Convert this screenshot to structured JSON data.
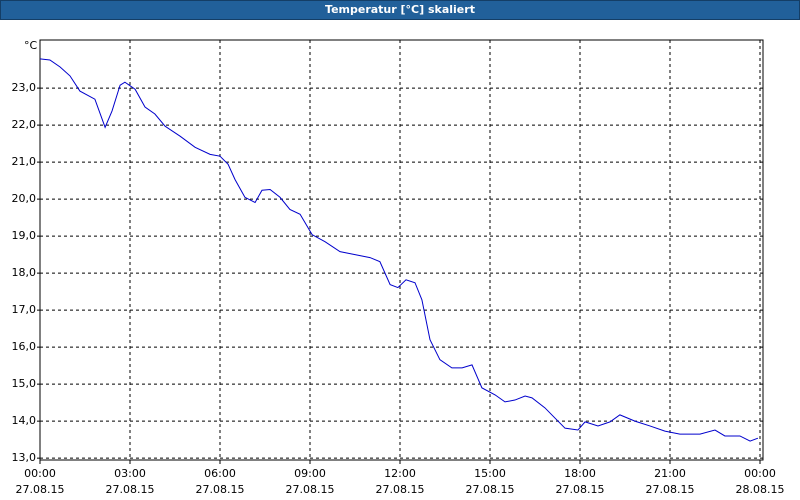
{
  "chart_data": {
    "type": "line",
    "title": "Temperatur [°C] skaliert",
    "y_label": "°C",
    "xlim": [
      0,
      24.1
    ],
    "ylim": [
      12.95,
      24.3
    ],
    "grid": true,
    "xticks": [
      {
        "value": 0,
        "label": "00:00"
      },
      {
        "value": 3,
        "label": "03:00"
      },
      {
        "value": 6,
        "label": "06:00"
      },
      {
        "value": 9,
        "label": "09:00"
      },
      {
        "value": 12,
        "label": "12:00"
      },
      {
        "value": 15,
        "label": "15:00"
      },
      {
        "value": 18,
        "label": "18:00"
      },
      {
        "value": 21,
        "label": "21:00"
      },
      {
        "value": 24,
        "label": "00:00"
      }
    ],
    "xtick_dates": [
      "27.08.15",
      "27.08.15",
      "27.08.15",
      "27.08.15",
      "27.08.15",
      "27.08.15",
      "27.08.15",
      "27.08.15",
      "28.08.15"
    ],
    "yticks": [
      {
        "value": 13,
        "label": "13,0"
      },
      {
        "value": 14,
        "label": "14,0"
      },
      {
        "value": 15,
        "label": "15,0"
      },
      {
        "value": 16,
        "label": "16,0"
      },
      {
        "value": 17,
        "label": "17,0"
      },
      {
        "value": 18,
        "label": "18,0"
      },
      {
        "value": 19,
        "label": "19,0"
      },
      {
        "value": 20,
        "label": "20,0"
      },
      {
        "value": 21,
        "label": "21,0"
      },
      {
        "value": 22,
        "label": "22,0"
      },
      {
        "value": 23,
        "label": "23,0"
      }
    ],
    "x": [
      0,
      0.33,
      0.67,
      1,
      1.33,
      1.83,
      2.17,
      2.4,
      2.67,
      2.83,
      3.17,
      3.5,
      3.83,
      4.17,
      4.67,
      5.17,
      5.67,
      6,
      6.27,
      6.5,
      6.83,
      7.17,
      7.4,
      7.67,
      8,
      8.33,
      8.67,
      9.07,
      9.5,
      10,
      10.5,
      11,
      11.33,
      11.67,
      11.93,
      12.2,
      12.5,
      12.73,
      13,
      13.33,
      13.73,
      14.07,
      14.4,
      14.73,
      15.17,
      15.5,
      15.83,
      16.17,
      16.4,
      16.83,
      17.17,
      17.5,
      17.93,
      18.17,
      18.6,
      19,
      19.33,
      19.83,
      20.33,
      20.83,
      21.33,
      22,
      22.5,
      22.83,
      23.33,
      23.67,
      23.93
    ],
    "series": [
      {
        "color": "#0000cc",
        "values": [
          23.79,
          23.76,
          23.57,
          23.33,
          22.92,
          22.7,
          21.94,
          22.38,
          23.08,
          23.16,
          22.97,
          22.49,
          22.3,
          21.97,
          21.7,
          21.4,
          21.21,
          21.16,
          20.94,
          20.53,
          20.05,
          19.91,
          20.24,
          20.26,
          20.05,
          19.72,
          19.59,
          19.04,
          18.85,
          18.58,
          18.5,
          18.42,
          18.31,
          17.69,
          17.61,
          17.82,
          17.74,
          17.28,
          16.2,
          15.66,
          15.44,
          15.44,
          15.52,
          14.9,
          14.71,
          14.52,
          14.57,
          14.68,
          14.63,
          14.36,
          14.08,
          13.81,
          13.76,
          13.98,
          13.87,
          13.98,
          14.17,
          14.0,
          13.87,
          13.73,
          13.65,
          13.65,
          13.76,
          13.6,
          13.6,
          13.46,
          13.54
        ]
      }
    ]
  }
}
